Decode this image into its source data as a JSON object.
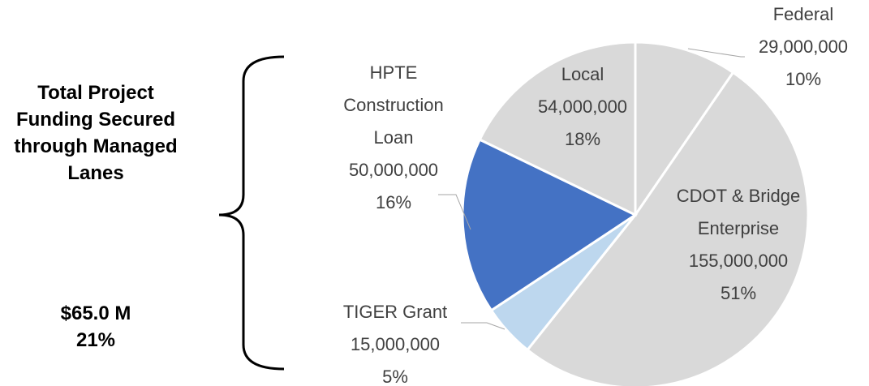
{
  "chart_data": {
    "type": "pie",
    "categories": [
      "Federal",
      "CDOT & Bridge Enterprise",
      "TIGER Grant",
      "HPTE Construction Loan",
      "Local"
    ],
    "values": [
      29000000,
      155000000,
      15000000,
      50000000,
      54000000
    ],
    "value_labels": [
      "29,000,000",
      "155,000,000",
      "15,000,000",
      "50,000,000",
      "54,000,000"
    ],
    "percent_labels": [
      "10%",
      "51%",
      "5%",
      "16%",
      "18%"
    ],
    "colors": [
      "#d9d9d9",
      "#d9d9d9",
      "#bdd7ee",
      "#4472c4",
      "#d9d9d9"
    ],
    "annotation": {
      "text": "Total Project Funding Secured through Managed Lanes",
      "amount": "$65.0 M",
      "percent": "21%"
    }
  }
}
